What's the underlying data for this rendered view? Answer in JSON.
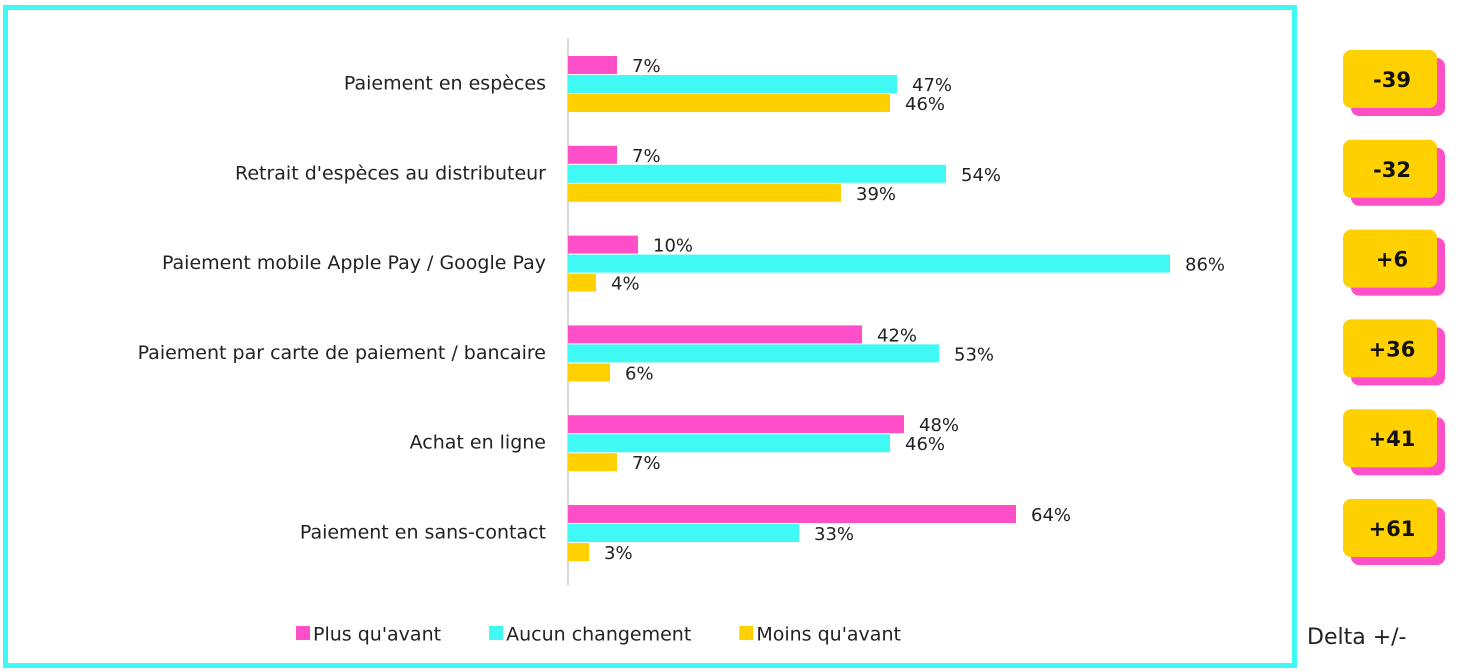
{
  "chart_data": {
    "type": "bar",
    "orientation": "horizontal",
    "categories": [
      "Paiement en espèces",
      "Retrait d'espèces au distributeur",
      "Paiement mobile Apple Pay / Google Pay",
      "Paiement par carte de paiement / bancaire",
      "Achat en ligne",
      "Paiement en sans-contact"
    ],
    "series": [
      {
        "name": "Plus qu'avant",
        "color": "#ff4fc8",
        "values": [
          7,
          7,
          10,
          42,
          48,
          64
        ],
        "value_labels": [
          "7%",
          "7%",
          "10%",
          "42%",
          "48%",
          "64%"
        ]
      },
      {
        "name": "Aucun changement",
        "color": "#40f8f4",
        "values": [
          47,
          54,
          86,
          53,
          46,
          33
        ],
        "value_labels": [
          "47%",
          "54%",
          "86%",
          "53%",
          "46%",
          "33%"
        ]
      },
      {
        "name": "Moins qu'avant",
        "color": "#ffd100",
        "values": [
          46,
          39,
          4,
          6,
          7,
          3
        ],
        "value_labels": [
          "46%",
          "39%",
          "4%",
          "6%",
          "7%",
          "3%"
        ]
      }
    ],
    "xlim": [
      0,
      100
    ],
    "legend": "bottom",
    "deltas": {
      "label": "Delta +/-",
      "values": [
        -39,
        -32,
        6,
        36,
        41,
        61
      ],
      "value_labels": [
        "-39",
        "-32",
        "+6",
        "+36",
        "+41",
        "+61"
      ],
      "color": "#ffd100",
      "shadow": "#ff4fc8"
    }
  }
}
